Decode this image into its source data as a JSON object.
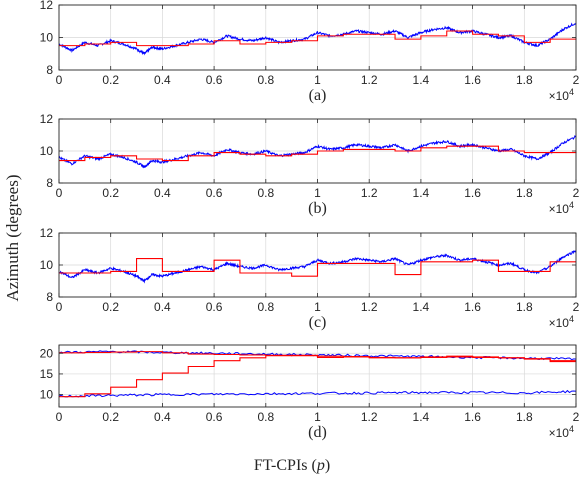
{
  "figure": {
    "ylabel": "Azimuth (degrees)",
    "xlabel_text": "FT-CPIs (",
    "xlabel_var": "p",
    "xlabel_close": ")",
    "multiplier_base": "×10",
    "multiplier_exp": "4"
  },
  "colors": {
    "measured": "#0000ff",
    "estimate": "#ff0000",
    "grid": "#d9d9d9",
    "axis": "#262626"
  },
  "chart_data": [
    {
      "type": "line",
      "caption": "(a)",
      "xlim": [
        0,
        20000
      ],
      "ylim": [
        8,
        12
      ],
      "yticks": [
        "8",
        "10",
        "12"
      ],
      "xticks": [
        "0",
        "0.2",
        "0.4",
        "0.6",
        "0.8",
        "1",
        "1.2",
        "1.4",
        "1.6",
        "1.8",
        "2"
      ],
      "grid": true,
      "series": [
        {
          "color": "#0000ff",
          "kind": "noisy",
          "x": [
            0,
            500,
            1000,
            1500,
            2000,
            2500,
            3000,
            3300,
            3600,
            4000,
            4500,
            5000,
            5500,
            6000,
            6500,
            7000,
            7500,
            8000,
            8500,
            9000,
            9500,
            10000,
            10500,
            11000,
            11500,
            12000,
            12500,
            13000,
            13500,
            14000,
            14500,
            15000,
            15500,
            16000,
            16500,
            17000,
            17500,
            18000,
            18500,
            19000,
            19500,
            20000
          ],
          "y": [
            9.6,
            9.2,
            9.7,
            9.5,
            9.8,
            9.6,
            9.3,
            9.0,
            9.4,
            9.3,
            9.5,
            9.7,
            9.9,
            9.7,
            10.1,
            9.9,
            9.8,
            10.0,
            9.7,
            9.8,
            9.9,
            10.3,
            10.1,
            10.2,
            10.4,
            10.3,
            10.2,
            10.4,
            10.0,
            10.3,
            10.5,
            10.6,
            10.3,
            10.4,
            10.2,
            10.0,
            10.1,
            9.7,
            9.5,
            9.9,
            10.5,
            10.9
          ]
        },
        {
          "color": "#ff0000",
          "kind": "step",
          "x": [
            0,
            1000,
            2000,
            3000,
            4000,
            5000,
            6000,
            7000,
            8000,
            9000,
            10000,
            11000,
            12000,
            13000,
            14000,
            15000,
            16000,
            17000,
            18000,
            19000,
            20000
          ],
          "y": [
            9.5,
            9.6,
            9.7,
            9.5,
            9.5,
            9.6,
            9.8,
            9.6,
            9.7,
            9.8,
            10.1,
            10.2,
            10.2,
            9.9,
            10.1,
            10.4,
            10.2,
            10.1,
            9.7,
            9.9,
            9.95
          ]
        }
      ]
    },
    {
      "type": "line",
      "caption": "(b)",
      "xlim": [
        0,
        20000
      ],
      "ylim": [
        8,
        12
      ],
      "yticks": [
        "8",
        "10",
        "12"
      ],
      "xticks": [
        "0",
        "0.2",
        "0.4",
        "0.6",
        "0.8",
        "1",
        "1.2",
        "1.4",
        "1.6",
        "1.8",
        "2"
      ],
      "grid": true,
      "series": [
        {
          "color": "#0000ff",
          "kind": "noisy",
          "x": [
            0,
            500,
            1000,
            1500,
            2000,
            2500,
            3000,
            3300,
            3600,
            4000,
            4500,
            5000,
            5500,
            6000,
            6500,
            7000,
            7500,
            8000,
            8500,
            9000,
            9500,
            10000,
            10500,
            11000,
            11500,
            12000,
            12500,
            13000,
            13500,
            14000,
            14500,
            15000,
            15500,
            16000,
            16500,
            17000,
            17500,
            18000,
            18500,
            19000,
            19500,
            20000
          ],
          "y": [
            9.6,
            9.2,
            9.7,
            9.5,
            9.8,
            9.6,
            9.3,
            9.0,
            9.4,
            9.3,
            9.5,
            9.7,
            9.9,
            9.7,
            10.1,
            9.9,
            9.8,
            10.0,
            9.7,
            9.8,
            9.9,
            10.3,
            10.1,
            10.2,
            10.4,
            10.3,
            10.2,
            10.4,
            10.0,
            10.3,
            10.5,
            10.6,
            10.3,
            10.4,
            10.2,
            10.0,
            10.1,
            9.7,
            9.5,
            9.9,
            10.5,
            10.9
          ]
        },
        {
          "color": "#ff0000",
          "kind": "step",
          "x": [
            0,
            1000,
            2000,
            3000,
            4000,
            5000,
            6000,
            7000,
            8000,
            9000,
            10000,
            11000,
            12000,
            13000,
            14000,
            15000,
            16000,
            17000,
            18000,
            19000,
            20000
          ],
          "y": [
            9.4,
            9.6,
            9.7,
            9.5,
            9.4,
            9.7,
            9.9,
            9.8,
            9.7,
            9.8,
            10.0,
            10.1,
            10.1,
            10.0,
            10.2,
            10.3,
            10.3,
            10.0,
            9.9,
            9.9,
            9.95
          ]
        }
      ]
    },
    {
      "type": "line",
      "caption": "(c)",
      "xlim": [
        0,
        20000
      ],
      "ylim": [
        8,
        12
      ],
      "yticks": [
        "8",
        "10",
        "12"
      ],
      "xticks": [
        "0",
        "0.2",
        "0.4",
        "0.6",
        "0.8",
        "1",
        "1.2",
        "1.4",
        "1.6",
        "1.8",
        "2"
      ],
      "grid": true,
      "series": [
        {
          "color": "#0000ff",
          "kind": "noisy",
          "x": [
            0,
            500,
            1000,
            1500,
            2000,
            2500,
            3000,
            3300,
            3600,
            4000,
            4500,
            5000,
            5500,
            6000,
            6500,
            7000,
            7500,
            8000,
            8500,
            9000,
            9500,
            10000,
            10500,
            11000,
            11500,
            12000,
            12500,
            13000,
            13500,
            14000,
            14500,
            15000,
            15500,
            16000,
            16500,
            17000,
            17500,
            18000,
            18500,
            19000,
            19500,
            20000
          ],
          "y": [
            9.6,
            9.2,
            9.7,
            9.5,
            9.8,
            9.6,
            9.3,
            9.0,
            9.4,
            9.3,
            9.5,
            9.7,
            9.9,
            9.7,
            10.1,
            9.9,
            9.8,
            10.0,
            9.7,
            9.8,
            9.9,
            10.3,
            10.1,
            10.2,
            10.4,
            10.3,
            10.2,
            10.4,
            10.0,
            10.3,
            10.5,
            10.6,
            10.3,
            10.4,
            10.2,
            10.0,
            10.1,
            9.7,
            9.5,
            9.9,
            10.5,
            10.9
          ]
        },
        {
          "color": "#ff0000",
          "kind": "step",
          "x": [
            0,
            1000,
            2000,
            3000,
            4000,
            5000,
            6000,
            7000,
            8000,
            9000,
            10000,
            11000,
            12000,
            13000,
            14000,
            15000,
            16000,
            17000,
            18000,
            19000,
            20000
          ],
          "y": [
            9.5,
            9.5,
            9.6,
            10.4,
            9.6,
            9.6,
            10.3,
            9.5,
            9.5,
            9.3,
            10.1,
            10.1,
            10.1,
            9.4,
            10.2,
            10.2,
            10.3,
            9.6,
            9.6,
            10.2,
            10.2
          ]
        }
      ]
    },
    {
      "type": "line",
      "caption": "(d)",
      "xlim": [
        0,
        20000
      ],
      "ylim": [
        7,
        22
      ],
      "yticks": [
        "10",
        "15",
        "20"
      ],
      "ytick_values": [
        10,
        15,
        20
      ],
      "xticks": [
        "0",
        "0.2",
        "0.4",
        "0.6",
        "0.8",
        "1",
        "1.2",
        "1.4",
        "1.6",
        "1.8",
        "2"
      ],
      "grid": true,
      "series": [
        {
          "color": "#0000ff",
          "kind": "noisy",
          "x": [
            0,
            2000,
            4000,
            6000,
            8000,
            10000,
            12000,
            14000,
            16000,
            18000,
            20000
          ],
          "y": [
            20.2,
            20.4,
            20.2,
            20.0,
            19.8,
            19.6,
            19.4,
            19.2,
            19.0,
            18.8,
            18.6
          ]
        },
        {
          "color": "#0000ff",
          "kind": "noisy",
          "x": [
            0,
            2000,
            4000,
            6000,
            8000,
            10000,
            12000,
            14000,
            16000,
            18000,
            20000
          ],
          "y": [
            9.6,
            9.8,
            10.0,
            10.1,
            10.2,
            10.3,
            10.4,
            10.5,
            10.5,
            10.4,
            10.8
          ]
        },
        {
          "color": "#ff0000",
          "kind": "step",
          "x": [
            0,
            1000,
            2000,
            3000,
            4000,
            5000,
            6000,
            7000,
            8000,
            9000,
            10000,
            11000,
            12000,
            13000,
            14000,
            15000,
            16000,
            17000,
            18000,
            19000,
            20000
          ],
          "y": [
            20.1,
            20.2,
            20.3,
            20.4,
            20.1,
            19.8,
            19.7,
            19.6,
            19.5,
            19.4,
            19.0,
            19.2,
            19.0,
            18.9,
            19.1,
            19.3,
            19.1,
            18.9,
            18.7,
            18.0,
            18.0
          ]
        },
        {
          "color": "#ff0000",
          "kind": "step",
          "x": [
            0,
            1000,
            2000,
            3000,
            4000,
            5000,
            6000,
            7000,
            8000,
            9000,
            10000,
            11000,
            12000,
            13000,
            14000,
            15000,
            16000,
            17000,
            18000,
            19000,
            20000
          ],
          "y": [
            9.5,
            10.2,
            11.8,
            13.6,
            15.2,
            16.8,
            18.2,
            18.9,
            19.4,
            19.5,
            19.3,
            19.1,
            18.9,
            18.9,
            19.0,
            19.1,
            19.0,
            18.9,
            18.6,
            18.2,
            18.2
          ]
        }
      ]
    }
  ]
}
